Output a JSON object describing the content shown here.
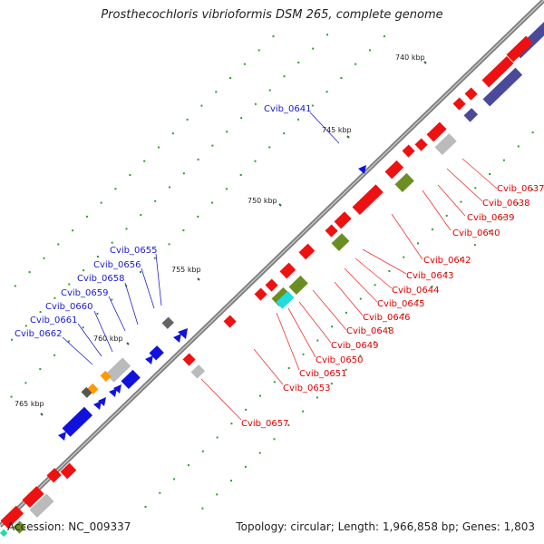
{
  "title": "Prosthecochloris vibrioformis DSM 265, complete genome",
  "accession": "Accession: NC_009337",
  "summary": "Topology: circular; Length: 1,966,858 bp; Genes: 1,803",
  "colors": {
    "backbone": "#808080",
    "forward_cds": "#ee1111",
    "reverse_cds": "#1111dd",
    "hypothetical": "#bbbbbb",
    "olive": "#6b8e23",
    "slate": "#4a4a99",
    "cyan": "#22dddd",
    "orange": "#ff9900",
    "tick_dots": "#339933"
  },
  "kbp_labels": [
    "740 kbp",
    "745 kbp",
    "750 kbp",
    "755 kbp",
    "760 kbp",
    "765 kbp"
  ],
  "outer_labels": [
    "Cvib_0637",
    "Cvib_0638",
    "Cvib_0639",
    "Cvib_0640",
    "Cvib_0642",
    "Cvib_0643",
    "Cvib_0644",
    "Cvib_0645",
    "Cvib_0646",
    "Cvib_0648",
    "Cvib_0649",
    "Cvib_0650",
    "Cvib_0651",
    "Cvib_0653",
    "Cvib_0657"
  ],
  "inner_labels": [
    "Cvib_0641",
    "Cvib_0655",
    "Cvib_0656",
    "Cvib_0658",
    "Cvib_0659",
    "Cvib_0660",
    "Cvib_0661",
    "Cvib_0662"
  ]
}
